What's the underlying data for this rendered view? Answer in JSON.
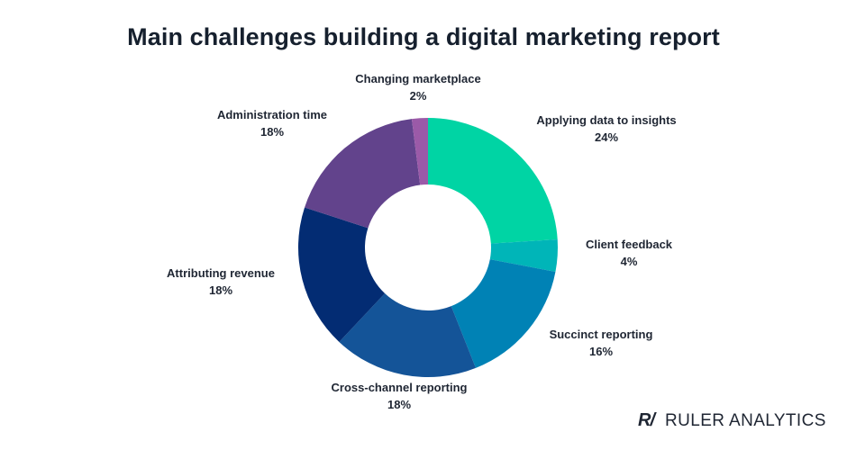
{
  "chart_data": {
    "type": "pie",
    "donut": true,
    "title": "Main challenges building a digital marketing report",
    "slices": [
      {
        "label": "Applying data to insights",
        "value": 24,
        "value_label": "24%",
        "color": "#00d4a4"
      },
      {
        "label": "Client feedback",
        "value": 4,
        "value_label": "4%",
        "color": "#00b5b8"
      },
      {
        "label": "Succinct reporting",
        "value": 16,
        "value_label": "16%",
        "color": "#0082b5"
      },
      {
        "label": "Cross-channel reporting",
        "value": 18,
        "value_label": "18%",
        "color": "#145498"
      },
      {
        "label": "Attributing revenue",
        "value": 18,
        "value_label": "18%",
        "color": "#032c73"
      },
      {
        "label": "Administration time",
        "value": 18,
        "value_label": "18%",
        "color": "#62438c"
      },
      {
        "label": "Changing marketplace",
        "value": 2,
        "value_label": "2%",
        "color": "#9b5aa8"
      }
    ]
  },
  "brand": {
    "mark": "R/",
    "name": "RULER ANALYTICS"
  }
}
